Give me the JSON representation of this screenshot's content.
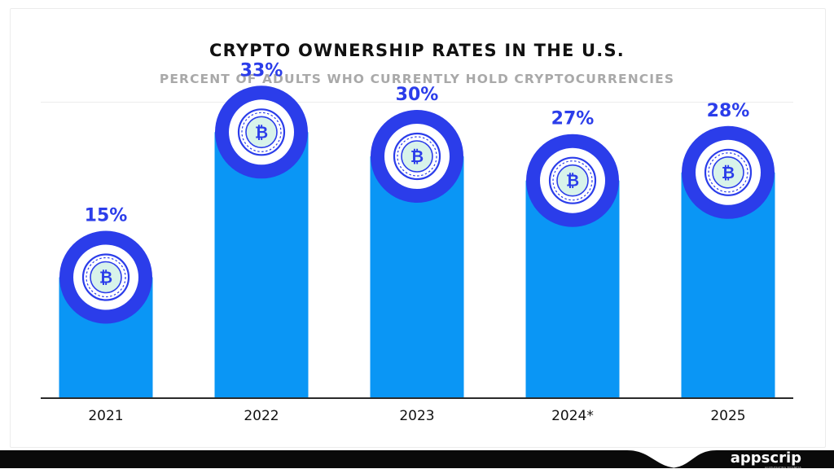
{
  "chart_data": {
    "type": "bar",
    "title": "CRYPTO OWNERSHIP RATES IN THE U.S.",
    "subtitle": "PERCENT OF ADULTS WHO CURRENTLY HOLD CRYPTOCURRENCIES",
    "categories": [
      "2021",
      "2022",
      "2023",
      "2024*",
      "2025"
    ],
    "values": [
      15,
      33,
      30,
      27,
      28
    ],
    "value_labels": [
      "15%",
      "33%",
      "30%",
      "27%",
      "28%"
    ],
    "ylim": [
      0,
      40
    ],
    "grid": false,
    "legend": "none",
    "xlabel": "",
    "ylabel": ""
  },
  "colors": {
    "bar": "#0a96f5",
    "ring": "#2b3dea",
    "value_label": "#2b3dea",
    "coin_fill": "#d8f3ea",
    "footer": "#0a0a0a"
  },
  "icons": {
    "bar_cap": "bitcoin-coin-icon"
  },
  "brand": {
    "name": "appscrip",
    "tagline": "ACCELERATING BUSINESS"
  }
}
